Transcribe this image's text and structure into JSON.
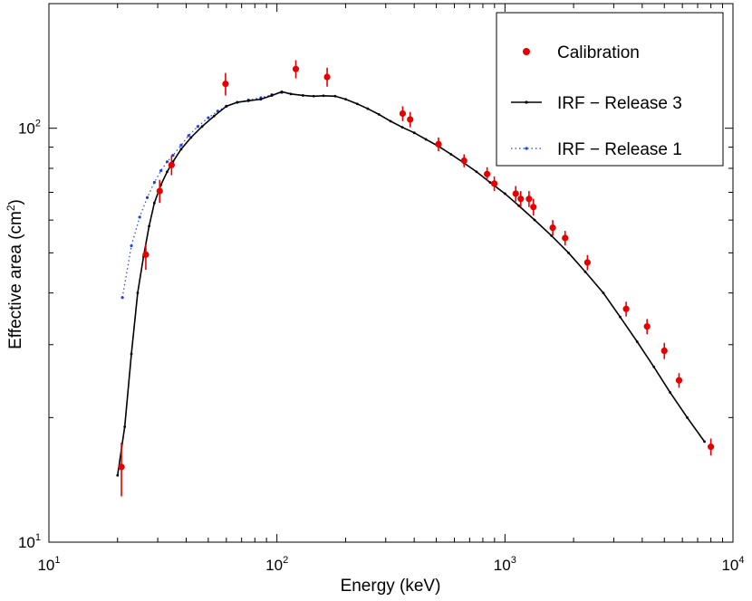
{
  "chart_data": {
    "type": "line",
    "title": "",
    "xlabel": "Energy (keV)",
    "ylabel_main": "Effective area (cm",
    "ylabel_sup": "2",
    "ylabel_tail": ")",
    "xscale": "log",
    "yscale": "log",
    "xlim": [
      10,
      10000
    ],
    "ylim": [
      10,
      200
    ],
    "x_ticks": [
      {
        "value": 10,
        "base": "10",
        "exp": "1"
      },
      {
        "value": 100,
        "base": "10",
        "exp": "2"
      },
      {
        "value": 1000,
        "base": "10",
        "exp": "3"
      },
      {
        "value": 10000,
        "base": "10",
        "exp": "4"
      }
    ],
    "y_ticks": [
      {
        "value": 10,
        "base": "10",
        "exp": "1"
      },
      {
        "value": 100,
        "base": "10",
        "exp": "2"
      }
    ],
    "legend_position": "top-right",
    "series": [
      {
        "name": "Calibration",
        "style": "points-with-errorbars",
        "color": "#e60000",
        "points": [
          {
            "x": 20.8,
            "y": 15.2,
            "yerr_low": 2.3,
            "yerr_high": 2.2
          },
          {
            "x": 26.6,
            "y": 49.5,
            "yerr_low": 4.0,
            "yerr_high": 3.0
          },
          {
            "x": 30.6,
            "y": 70.5,
            "yerr_low": 4.5,
            "yerr_high": 4.5
          },
          {
            "x": 34.5,
            "y": 81.5,
            "yerr_low": 4.5,
            "yerr_high": 4.5
          },
          {
            "x": 59.5,
            "y": 128,
            "yerr_low": 8,
            "yerr_high": 8
          },
          {
            "x": 121,
            "y": 139,
            "yerr_low": 7,
            "yerr_high": 7
          },
          {
            "x": 166,
            "y": 133,
            "yerr_low": 7,
            "yerr_high": 7
          },
          {
            "x": 356,
            "y": 108.5,
            "yerr_low": 4.5,
            "yerr_high": 4.5
          },
          {
            "x": 384,
            "y": 105,
            "yerr_low": 4.5,
            "yerr_high": 4.5
          },
          {
            "x": 511,
            "y": 91.5,
            "yerr_low": 3.5,
            "yerr_high": 3.5
          },
          {
            "x": 662,
            "y": 83.5,
            "yerr_low": 3.0,
            "yerr_high": 3.0
          },
          {
            "x": 835,
            "y": 77.5,
            "yerr_low": 3.0,
            "yerr_high": 3.0
          },
          {
            "x": 898,
            "y": 73.5,
            "yerr_low": 3.0,
            "yerr_high": 3.0
          },
          {
            "x": 1115,
            "y": 69.5,
            "yerr_low": 3.0,
            "yerr_high": 3.0
          },
          {
            "x": 1173,
            "y": 67.5,
            "yerr_low": 3.0,
            "yerr_high": 3.0
          },
          {
            "x": 1275,
            "y": 67.5,
            "yerr_low": 3.0,
            "yerr_high": 3.0
          },
          {
            "x": 1333,
            "y": 64.5,
            "yerr_low": 3.0,
            "yerr_high": 3.0
          },
          {
            "x": 1620,
            "y": 57.5,
            "yerr_low": 2.5,
            "yerr_high": 2.5
          },
          {
            "x": 1836,
            "y": 54.3,
            "yerr_low": 2.2,
            "yerr_high": 2.2
          },
          {
            "x": 2300,
            "y": 47.4,
            "yerr_low": 2.0,
            "yerr_high": 2.0
          },
          {
            "x": 3400,
            "y": 36.6,
            "yerr_low": 1.5,
            "yerr_high": 1.5
          },
          {
            "x": 4200,
            "y": 33.2,
            "yerr_low": 1.4,
            "yerr_high": 1.4
          },
          {
            "x": 5000,
            "y": 29.0,
            "yerr_low": 1.3,
            "yerr_high": 1.3
          },
          {
            "x": 5800,
            "y": 24.6,
            "yerr_low": 1.0,
            "yerr_high": 1.0
          },
          {
            "x": 8000,
            "y": 17.0,
            "yerr_low": 0.8,
            "yerr_high": 0.8
          }
        ]
      },
      {
        "name": "IRF − Release 3",
        "style": "solid-line-dots",
        "color": "#000000",
        "x": [
          20,
          21.5,
          23,
          24.5,
          26,
          27.5,
          29,
          31,
          33,
          35,
          38,
          42,
          47,
          53,
          60,
          67,
          75,
          85,
          95,
          105,
          115,
          130,
          145,
          160,
          180,
          200,
          225,
          250,
          280,
          315,
          355,
          400,
          450,
          510,
          580,
          660,
          750,
          860,
          1000,
          1150,
          1350,
          1600,
          1900,
          2250,
          2700,
          3200,
          3800,
          4500,
          5300,
          6300,
          7500
        ],
        "y": [
          14.5,
          19.0,
          28.5,
          40.0,
          49.0,
          58.0,
          66.0,
          73.0,
          78.5,
          83.0,
          89.0,
          95.0,
          101.0,
          107.0,
          113.0,
          115.5,
          116.5,
          117.5,
          120.0,
          122.5,
          121.0,
          120.0,
          119.5,
          119.8,
          119.5,
          117.5,
          114.5,
          111.5,
          108.0,
          104.0,
          100.5,
          97.5,
          94.0,
          90.5,
          86.5,
          82.5,
          78.5,
          74.0,
          69.5,
          65.0,
          60.0,
          55.0,
          50.0,
          45.0,
          40.0,
          35.0,
          30.5,
          26.5,
          23.0,
          20.0,
          17.5
        ]
      },
      {
        "name": "IRF − Release 1",
        "style": "dotted-line-dots",
        "color": "#1f3ff0",
        "x": [
          21,
          23,
          25,
          27,
          29,
          31,
          33,
          35,
          38,
          41,
          45,
          50,
          55,
          60,
          67,
          75,
          85,
          95,
          105
        ],
        "y": [
          39.0,
          52.0,
          61.0,
          68.0,
          74.0,
          79.0,
          83.0,
          86.0,
          91.0,
          96.0,
          101.0,
          106.0,
          110.0,
          113.0,
          115.5,
          117.0,
          118.5,
          120.5,
          122.0
        ]
      }
    ]
  }
}
